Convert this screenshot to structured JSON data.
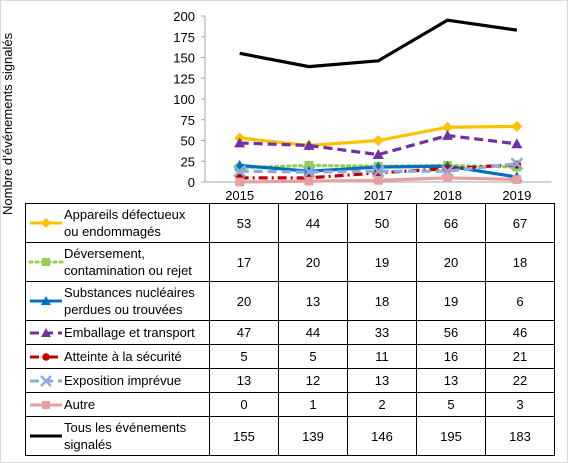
{
  "chart_data": {
    "type": "line",
    "ylabel": "Nombre d’événements signalés",
    "ylim": [
      0,
      200
    ],
    "yticks": [
      0,
      25,
      50,
      75,
      100,
      125,
      150,
      175,
      200
    ],
    "yticks_labels": [
      "0",
      "25",
      "50",
      "75",
      "100",
      "125",
      "150",
      "175",
      "200"
    ],
    "categories": [
      "2015",
      "2016",
      "2017",
      "2018",
      "2019"
    ],
    "legend": "table-below",
    "grid": false,
    "series": [
      {
        "name": "Appareils défectueux ou endommagés",
        "values": [
          53,
          44,
          50,
          66,
          67
        ],
        "color": "#FFC000",
        "style": "solid",
        "marker": "diamond"
      },
      {
        "name": "Déversement, contamination ou rejet",
        "values": [
          17,
          20,
          19,
          20,
          18
        ],
        "color": "#92D050",
        "style": "dotted",
        "marker": "square"
      },
      {
        "name": "Substances nucléaires perdues ou trouvées",
        "values": [
          20,
          13,
          18,
          19,
          6
        ],
        "color": "#0070C0",
        "style": "solid",
        "marker": "triangle"
      },
      {
        "name": "Emballage et transport",
        "values": [
          47,
          44,
          33,
          56,
          46
        ],
        "color": "#7030A0",
        "style": "dashed",
        "marker": "triangle"
      },
      {
        "name": "Atteinte à la sécurité",
        "values": [
          5,
          5,
          11,
          16,
          21
        ],
        "color": "#C00000",
        "style": "dashdot",
        "marker": "circle"
      },
      {
        "name": "Exposition imprévue",
        "values": [
          13,
          12,
          13,
          13,
          22
        ],
        "color": "#8EA9DB",
        "style": "dashed",
        "marker": "x"
      },
      {
        "name": "Autre",
        "values": [
          0,
          1,
          2,
          5,
          3
        ],
        "color": "#E6A0A0",
        "style": "solid",
        "marker": "square"
      },
      {
        "name": "Tous les événements signalés",
        "values": [
          155,
          139,
          146,
          195,
          183
        ],
        "color": "#000000",
        "style": "solid",
        "marker": "none"
      }
    ]
  },
  "table": {
    "rows": [
      {
        "label_lines": [
          "Appareils défectueux",
          "ou endommagés"
        ],
        "values": [
          "53",
          "44",
          "50",
          "66",
          "67"
        ]
      },
      {
        "label_lines": [
          "Déversement,",
          "contamination ou rejet"
        ],
        "values": [
          "17",
          "20",
          "19",
          "20",
          "18"
        ]
      },
      {
        "label_lines": [
          "Substances nucléaires",
          "perdues ou trouvées"
        ],
        "values": [
          "20",
          "13",
          "18",
          "19",
          "6"
        ]
      },
      {
        "label_lines": [
          "Emballage et transport"
        ],
        "values": [
          "47",
          "44",
          "33",
          "56",
          "46"
        ]
      },
      {
        "label_lines": [
          "Atteinte à la sécurité"
        ],
        "values": [
          "5",
          "5",
          "11",
          "16",
          "21"
        ]
      },
      {
        "label_lines": [
          "Exposition imprévue"
        ],
        "values": [
          "13",
          "12",
          "13",
          "13",
          "22"
        ]
      },
      {
        "label_lines": [
          "Autre"
        ],
        "values": [
          "0",
          "1",
          "2",
          "5",
          "3"
        ]
      },
      {
        "label_lines": [
          "Tous les événements",
          "signalés"
        ],
        "values": [
          "155",
          "139",
          "146",
          "195",
          "183"
        ]
      }
    ]
  }
}
